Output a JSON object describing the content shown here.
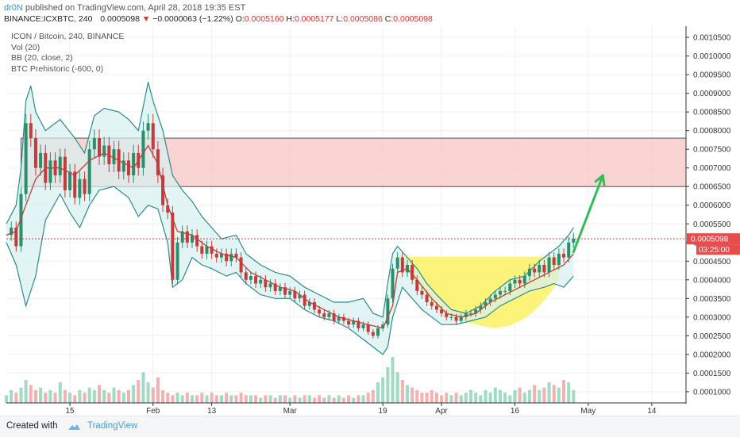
{
  "header": {
    "author": "dr0N",
    "published": "published on TradingView.com, April 28, 2018 19:35 EST",
    "symbol": "BINANCE:ICXBTC, 240",
    "last": "0.0005098",
    "change": "−0.0000063 (−1.22%)",
    "open_label": "O:",
    "open": "0.0005160",
    "high_label": "H:",
    "high": "0.0005177",
    "low_label": "L:",
    "low": "0.0005086",
    "close_label": "C:",
    "close": "0.0005098"
  },
  "legend": {
    "line1": "ICON / Bitcoin, 240, BINANCE",
    "line2": "Vol (20)",
    "line3": "BB (20, close, 2)",
    "line4": "BTC Prehistoric (-600, 0)"
  },
  "price_tag": {
    "value": "0.0005098",
    "countdown": "03:25:00"
  },
  "footer": {
    "created_with": "Created with",
    "brand": "TradingView"
  },
  "colors": {
    "bb_band": "#2e8b8b",
    "bb_fill": "#d7efef",
    "zone_fill": "#f8c4c4",
    "cup_fill": "#fbf26b",
    "ma_line": "#c43b3b",
    "arrow": "#2fbf57",
    "vol_up": "#8fd6b8",
    "vol_down": "#f2a3a3",
    "price_line": "#e03030"
  },
  "chart_data": {
    "type": "line",
    "title": "ICON / Bitcoin, 240, BINANCE",
    "y_axis": {
      "ticks": [
        "0.0010500",
        "0.0010000",
        "0.0009500",
        "0.0009000",
        "0.0008500",
        "0.0008000",
        "0.0007500",
        "0.0007000",
        "0.0006500",
        "0.0006000",
        "0.0005500",
        "0.0005000",
        "0.0004500",
        "0.0004000",
        "0.0003500",
        "0.0003000",
        "0.0002500",
        "0.0002000",
        "0.0001500",
        "0.0001000"
      ],
      "ylim": [
        7e-05,
        0.00108
      ]
    },
    "x_axis": {
      "ticks": [
        "15",
        "Feb",
        "13",
        "Mar",
        "19",
        "Apr",
        "16",
        "May",
        "14"
      ],
      "tick_days": [
        14,
        31,
        43,
        59,
        78,
        90,
        105,
        120,
        133
      ],
      "xlim": [
        1,
        140
      ]
    },
    "bb_upper": [
      [
        1,
        0.00055
      ],
      [
        3,
        0.0006
      ],
      [
        4,
        0.0007
      ],
      [
        5,
        0.00088
      ],
      [
        6,
        0.00092
      ],
      [
        7,
        0.00085
      ],
      [
        9,
        0.0008
      ],
      [
        12,
        0.00083
      ],
      [
        15,
        0.00078
      ],
      [
        17,
        0.00074
      ],
      [
        19,
        0.00084
      ],
      [
        21,
        0.00086
      ],
      [
        24,
        0.00085
      ],
      [
        26,
        0.00083
      ],
      [
        28,
        0.0008
      ],
      [
        30,
        0.00093
      ],
      [
        31,
        0.00088
      ],
      [
        33,
        0.0008
      ],
      [
        35,
        0.00068
      ],
      [
        37,
        0.00064
      ],
      [
        39,
        0.00061
      ],
      [
        41,
        0.00057
      ],
      [
        43,
        0.00054
      ],
      [
        45,
        0.00051
      ],
      [
        48,
        0.00052
      ],
      [
        50,
        0.00047
      ],
      [
        53,
        0.00044
      ],
      [
        56,
        0.00042
      ],
      [
        59,
        0.00041
      ],
      [
        62,
        0.00038
      ],
      [
        65,
        0.00036
      ],
      [
        68,
        0.00034
      ],
      [
        71,
        0.00034
      ],
      [
        74,
        0.00035
      ],
      [
        76,
        0.00031
      ],
      [
        78,
        0.0003
      ],
      [
        79,
        0.00039
      ],
      [
        80,
        0.00047
      ],
      [
        81,
        0.00049
      ],
      [
        83,
        0.00046
      ],
      [
        85,
        0.00043
      ],
      [
        87,
        0.00039
      ],
      [
        89,
        0.00036
      ],
      [
        92,
        0.00032
      ],
      [
        95,
        0.00031
      ],
      [
        98,
        0.00033
      ],
      [
        101,
        0.00037
      ],
      [
        104,
        0.0004
      ],
      [
        107,
        0.00041
      ],
      [
        110,
        0.00045
      ],
      [
        112,
        0.00047
      ],
      [
        114,
        0.00049
      ],
      [
        116,
        0.00052
      ],
      [
        117,
        0.00054
      ]
    ],
    "bb_lower": [
      [
        1,
        0.0005
      ],
      [
        3,
        0.00044
      ],
      [
        5,
        0.00033
      ],
      [
        7,
        0.00041
      ],
      [
        9,
        0.00056
      ],
      [
        12,
        0.00063
      ],
      [
        14,
        0.00058
      ],
      [
        16,
        0.00054
      ],
      [
        18,
        0.0006
      ],
      [
        20,
        0.00064
      ],
      [
        23,
        0.00065
      ],
      [
        26,
        0.00062
      ],
      [
        28,
        0.00057
      ],
      [
        30,
        0.0006
      ],
      [
        32,
        0.00059
      ],
      [
        34,
        0.0005
      ],
      [
        35,
        0.00038
      ],
      [
        37,
        0.0004
      ],
      [
        39,
        0.00046
      ],
      [
        41,
        0.00044
      ],
      [
        43,
        0.00043
      ],
      [
        46,
        0.00041
      ],
      [
        48,
        0.00042
      ],
      [
        50,
        0.00039
      ],
      [
        53,
        0.00036
      ],
      [
        56,
        0.00035
      ],
      [
        59,
        0.00035
      ],
      [
        62,
        0.00032
      ],
      [
        65,
        0.0003
      ],
      [
        68,
        0.00029
      ],
      [
        71,
        0.00027
      ],
      [
        74,
        0.00024
      ],
      [
        76,
        0.00022
      ],
      [
        78,
        0.0002
      ],
      [
        79,
        0.00022
      ],
      [
        80,
        0.0003
      ],
      [
        82,
        0.00038
      ],
      [
        84,
        0.00035
      ],
      [
        86,
        0.00032
      ],
      [
        88,
        0.0003
      ],
      [
        90,
        0.00028
      ],
      [
        93,
        0.00028
      ],
      [
        96,
        0.00029
      ],
      [
        99,
        0.0003
      ],
      [
        102,
        0.00033
      ],
      [
        105,
        0.00035
      ],
      [
        108,
        0.00037
      ],
      [
        111,
        0.00038
      ],
      [
        113,
        0.00039
      ],
      [
        115,
        0.00038
      ],
      [
        117,
        0.00041
      ]
    ],
    "moving_average": [
      [
        1,
        0.00052
      ],
      [
        3,
        0.00053
      ],
      [
        5,
        0.0006
      ],
      [
        7,
        0.00067
      ],
      [
        9,
        0.0007
      ],
      [
        12,
        0.0007
      ],
      [
        15,
        0.00068
      ],
      [
        18,
        0.00072
      ],
      [
        21,
        0.00074
      ],
      [
        24,
        0.00072
      ],
      [
        27,
        0.0007
      ],
      [
        30,
        0.00076
      ],
      [
        32,
        0.00071
      ],
      [
        34,
        0.0006
      ],
      [
        36,
        0.00053
      ],
      [
        39,
        0.00052
      ],
      [
        42,
        0.00049
      ],
      [
        45,
        0.00047
      ],
      [
        48,
        0.00046
      ],
      [
        51,
        0.00042
      ],
      [
        54,
        0.0004
      ],
      [
        57,
        0.00038
      ],
      [
        60,
        0.00037
      ],
      [
        63,
        0.00034
      ],
      [
        66,
        0.00032
      ],
      [
        69,
        0.0003
      ],
      [
        72,
        0.00029
      ],
      [
        75,
        0.00028
      ],
      [
        78,
        0.00027
      ],
      [
        80,
        0.00033
      ],
      [
        81,
        0.00042
      ],
      [
        83,
        0.00043
      ],
      [
        85,
        0.0004
      ],
      [
        88,
        0.00035
      ],
      [
        91,
        0.00031
      ],
      [
        94,
        0.0003
      ],
      [
        97,
        0.00031
      ],
      [
        100,
        0.00034
      ],
      [
        103,
        0.00036
      ],
      [
        106,
        0.00038
      ],
      [
        109,
        0.0004
      ],
      [
        112,
        0.00042
      ],
      [
        115,
        0.00044
      ],
      [
        117,
        0.00047
      ]
    ],
    "price": [
      [
        1,
        0.00052
      ],
      [
        2,
        0.00054
      ],
      [
        3,
        0.00049
      ],
      [
        4,
        0.00063
      ],
      [
        5,
        0.00082
      ],
      [
        6,
        0.00078
      ],
      [
        7,
        0.0007
      ],
      [
        8,
        0.00074
      ],
      [
        9,
        0.00066
      ],
      [
        10,
        0.00072
      ],
      [
        11,
        0.00068
      ],
      [
        12,
        0.00073
      ],
      [
        13,
        0.00064
      ],
      [
        14,
        0.00069
      ],
      [
        15,
        0.00062
      ],
      [
        16,
        0.00067
      ],
      [
        17,
        0.00063
      ],
      [
        18,
        0.00075
      ],
      [
        19,
        0.00078
      ],
      [
        20,
        0.00073
      ],
      [
        21,
        0.00076
      ],
      [
        22,
        0.00071
      ],
      [
        23,
        0.00075
      ],
      [
        24,
        0.00069
      ],
      [
        25,
        0.00072
      ],
      [
        26,
        0.00068
      ],
      [
        27,
        0.00074
      ],
      [
        28,
        0.0007
      ],
      [
        29,
        0.0008
      ],
      [
        30,
        0.00082
      ],
      [
        31,
        0.00075
      ],
      [
        32,
        0.00068
      ],
      [
        33,
        0.0006
      ],
      [
        34,
        0.00058
      ],
      [
        35,
        0.0004
      ],
      [
        36,
        0.0005
      ],
      [
        37,
        0.00053
      ],
      [
        38,
        0.0005
      ],
      [
        39,
        0.00052
      ],
      [
        40,
        0.00049
      ],
      [
        41,
        0.00047
      ],
      [
        42,
        0.00049
      ],
      [
        43,
        0.00047
      ],
      [
        44,
        0.00046
      ],
      [
        45,
        0.00047
      ],
      [
        46,
        0.00045
      ],
      [
        47,
        0.00047
      ],
      [
        48,
        0.00046
      ],
      [
        49,
        0.00042
      ],
      [
        50,
        0.0004
      ],
      [
        51,
        0.00041
      ],
      [
        52,
        0.00039
      ],
      [
        53,
        0.0004
      ],
      [
        54,
        0.00038
      ],
      [
        55,
        0.00039
      ],
      [
        56,
        0.00037
      ],
      [
        57,
        0.00038
      ],
      [
        58,
        0.00036
      ],
      [
        59,
        0.00037
      ],
      [
        60,
        0.00035
      ],
      [
        61,
        0.00036
      ],
      [
        62,
        0.00033
      ],
      [
        63,
        0.00034
      ],
      [
        64,
        0.00032
      ],
      [
        65,
        0.00031
      ],
      [
        66,
        0.0003
      ],
      [
        67,
        0.00031
      ],
      [
        68,
        0.00029
      ],
      [
        69,
        0.0003
      ],
      [
        70,
        0.00029
      ],
      [
        71,
        0.00028
      ],
      [
        72,
        0.00029
      ],
      [
        73,
        0.00027
      ],
      [
        74,
        0.00028
      ],
      [
        75,
        0.00026
      ],
      [
        76,
        0.00025
      ],
      [
        77,
        0.00027
      ],
      [
        78,
        0.00028
      ],
      [
        79,
        0.00035
      ],
      [
        80,
        0.00043
      ],
      [
        81,
        0.00046
      ],
      [
        82,
        0.00042
      ],
      [
        83,
        0.00044
      ],
      [
        84,
        0.0004
      ],
      [
        85,
        0.00037
      ],
      [
        86,
        0.00036
      ],
      [
        87,
        0.00034
      ],
      [
        88,
        0.00033
      ],
      [
        89,
        0.00032
      ],
      [
        90,
        0.00031
      ],
      [
        91,
        0.0003
      ],
      [
        92,
        0.0003
      ],
      [
        93,
        0.00029
      ],
      [
        94,
        0.0003
      ],
      [
        95,
        0.00031
      ],
      [
        96,
        0.00031
      ],
      [
        97,
        0.00032
      ],
      [
        98,
        0.00033
      ],
      [
        99,
        0.00034
      ],
      [
        100,
        0.00035
      ],
      [
        101,
        0.00036
      ],
      [
        102,
        0.00037
      ],
      [
        103,
        0.00037
      ],
      [
        104,
        0.00039
      ],
      [
        105,
        0.0004
      ],
      [
        106,
        0.00039
      ],
      [
        107,
        0.00041
      ],
      [
        108,
        0.00043
      ],
      [
        109,
        0.00042
      ],
      [
        110,
        0.00044
      ],
      [
        111,
        0.00042
      ],
      [
        112,
        0.00046
      ],
      [
        113,
        0.00044
      ],
      [
        114,
        0.00047
      ],
      [
        115,
        0.00046
      ],
      [
        116,
        0.0005
      ],
      [
        117,
        0.00051
      ]
    ],
    "volume": [
      3,
      5,
      4,
      6,
      9,
      7,
      5,
      6,
      4,
      5,
      4,
      8,
      5,
      4,
      3,
      5,
      4,
      6,
      5,
      7,
      5,
      4,
      6,
      5,
      4,
      5,
      7,
      9,
      12,
      8,
      6,
      10,
      5,
      4,
      3,
      4,
      3,
      4,
      3,
      3,
      4,
      3,
      4,
      3,
      3,
      4,
      3,
      3,
      4,
      3,
      3,
      3,
      2,
      3,
      3,
      2,
      3,
      3,
      2,
      3,
      2,
      3,
      3,
      2,
      3,
      2,
      3,
      2,
      3,
      2,
      3,
      2,
      3,
      3,
      4,
      5,
      8,
      10,
      14,
      18,
      12,
      9,
      7,
      6,
      5,
      4,
      4,
      5,
      4,
      3,
      4,
      3,
      4,
      3,
      4,
      5,
      4,
      3,
      5,
      4,
      6,
      5,
      4,
      3,
      5,
      6,
      4,
      5,
      7,
      5,
      6,
      8,
      7,
      6,
      9,
      8,
      5
    ],
    "resistance_zone": {
      "y_low": 0.00065,
      "y_high": 0.00078,
      "x_start": 4,
      "x_end": 140
    },
    "cup_pattern": {
      "x_start": 81,
      "x_end": 114,
      "y_top": 0.000462,
      "y_bottom": 0.00028
    },
    "target_arrow": {
      "from": [
        117,
        0.000475
      ],
      "to": [
        123,
        0.00068
      ]
    },
    "last_price": 0.0005098
  }
}
